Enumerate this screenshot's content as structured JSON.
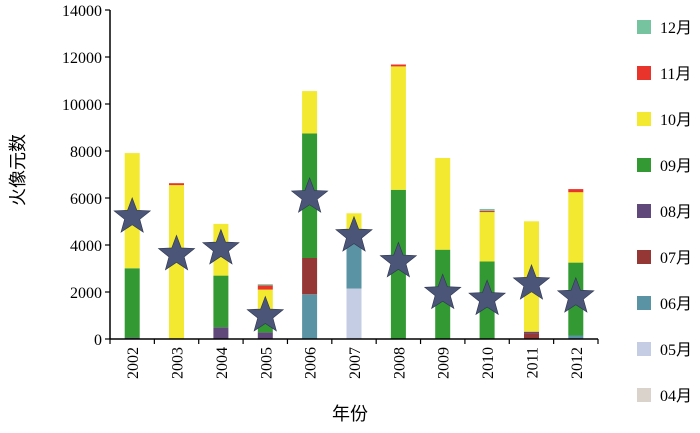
{
  "chart_data": {
    "type": "bar",
    "stacked": true,
    "title": "",
    "xlabel": "年份",
    "ylabel": "火像元数",
    "ylim": [
      0,
      14000
    ],
    "yticks": [
      "0",
      "2000",
      "4000",
      "6000",
      "8000",
      "10000",
      "12000",
      "14000"
    ],
    "categories": [
      "2002",
      "2003",
      "2004",
      "2005",
      "2006",
      "2007",
      "2008",
      "2009",
      "2010",
      "2011",
      "2012"
    ],
    "series": [
      {
        "name": "04月",
        "color": "#d9d3cc",
        "values": [
          0,
          0,
          0,
          0,
          0,
          0,
          0,
          0,
          0,
          0,
          0
        ]
      },
      {
        "name": "05月",
        "color": "#c4cde3",
        "values": [
          0,
          0,
          0,
          0,
          0,
          2150,
          0,
          0,
          0,
          0,
          0
        ]
      },
      {
        "name": "06月",
        "color": "#5a93a3",
        "values": [
          0,
          0,
          0,
          0,
          1900,
          2100,
          0,
          0,
          0,
          0,
          150
        ]
      },
      {
        "name": "07月",
        "color": "#953735",
        "values": [
          0,
          0,
          0,
          0,
          1550,
          0,
          0,
          0,
          0,
          250,
          0
        ]
      },
      {
        "name": "08月",
        "color": "#60497a",
        "values": [
          60,
          0,
          500,
          280,
          0,
          0,
          0,
          0,
          0,
          60,
          0
        ]
      },
      {
        "name": "09月",
        "color": "#339933",
        "values": [
          2950,
          0,
          2200,
          820,
          5300,
          0,
          6350,
          3800,
          3300,
          0,
          3100
        ]
      },
      {
        "name": "10月",
        "color": "#f2e930",
        "values": [
          4900,
          6550,
          2200,
          1000,
          1800,
          1100,
          5250,
          3900,
          2100,
          4700,
          3000
        ]
      },
      {
        "name": "11月",
        "color": "#e8342a",
        "values": [
          0,
          80,
          0,
          180,
          0,
          0,
          80,
          0,
          50,
          0,
          130
        ]
      },
      {
        "name": "12月",
        "color": "#76c49f",
        "values": [
          0,
          0,
          0,
          50,
          0,
          0,
          0,
          0,
          80,
          0,
          0
        ]
      }
    ],
    "stars": {
      "name": "",
      "color": "#4a5578",
      "values": [
        5200,
        3600,
        3850,
        1000,
        6050,
        4400,
        3300,
        1950,
        1700,
        2350,
        1800
      ]
    },
    "legend_position": "right",
    "legend_order": [
      "12月",
      "11月",
      "10月",
      "09月",
      "08月",
      "07月",
      "06月",
      "05月",
      "04月"
    ],
    "grid": false
  }
}
